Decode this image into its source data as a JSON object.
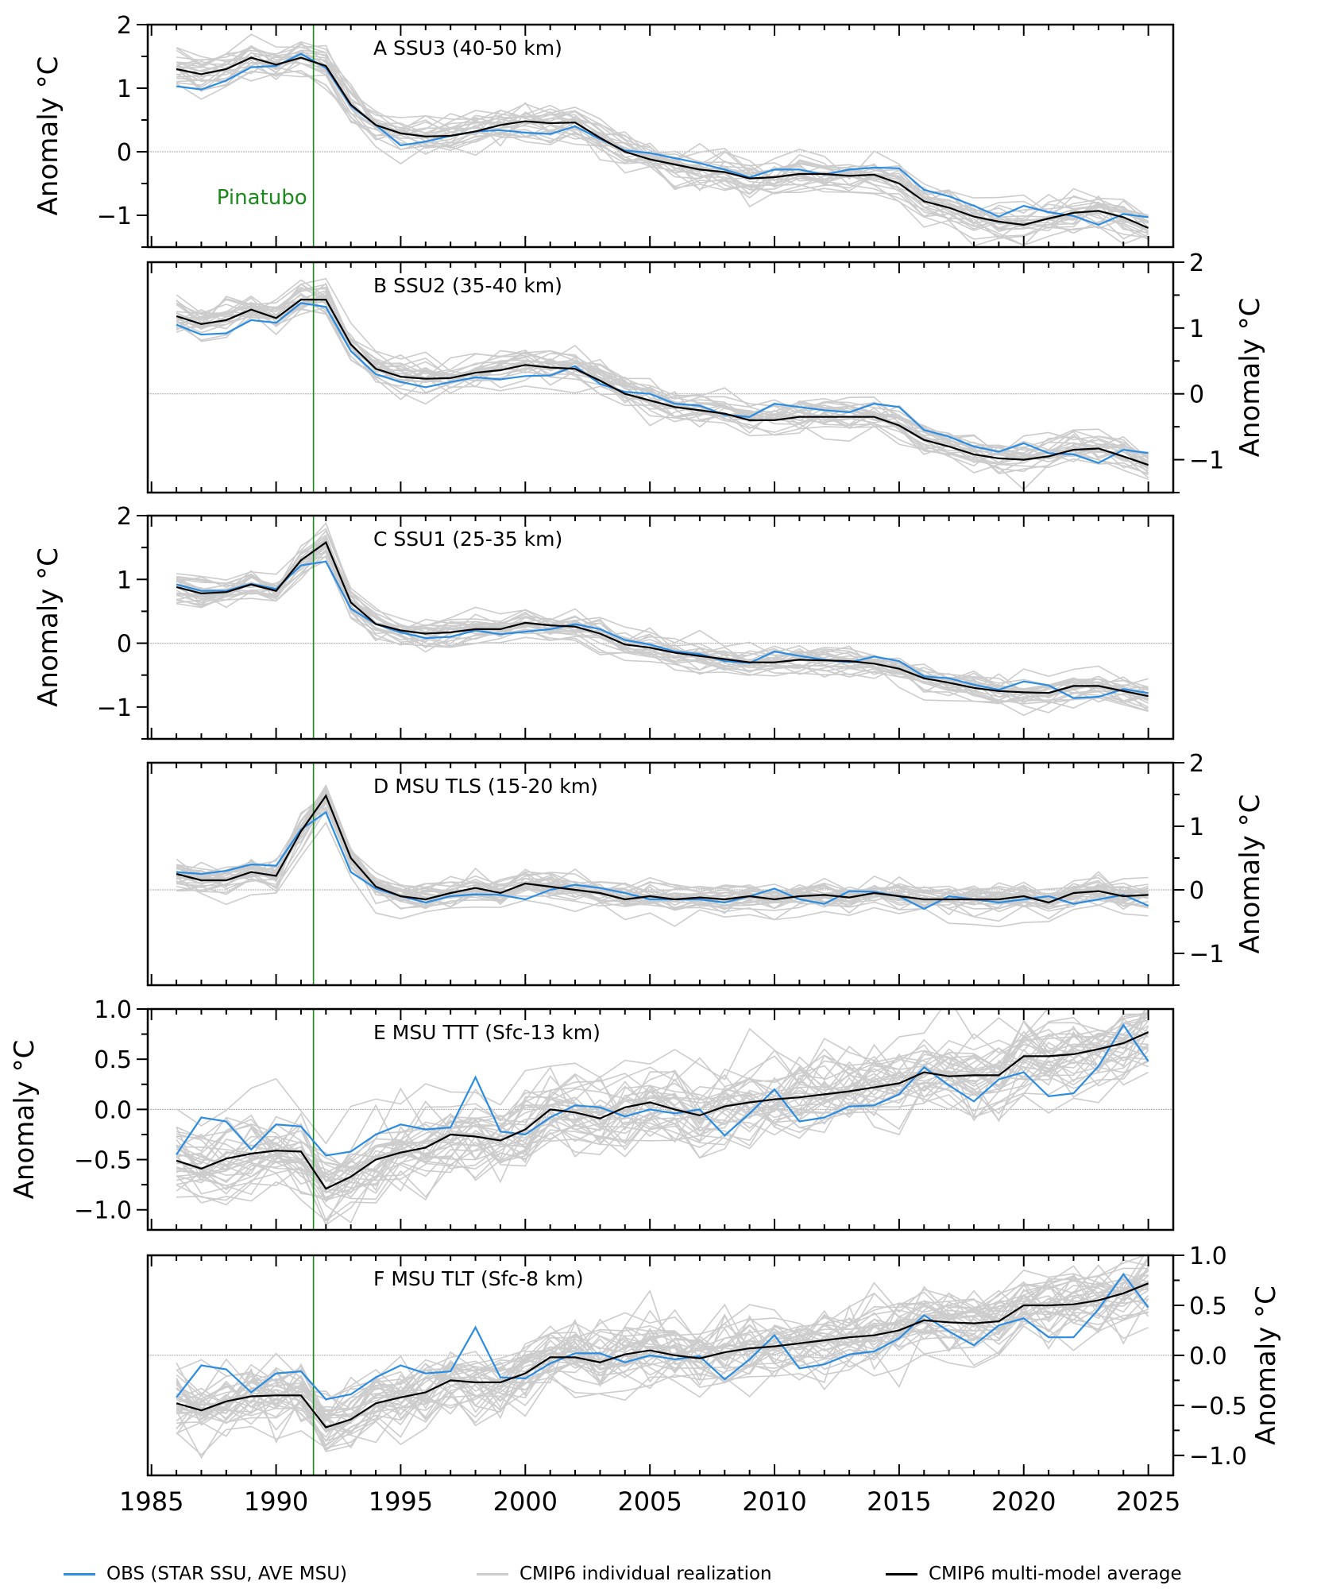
{
  "figure": {
    "legend": [
      {
        "label": "OBS (STAR SSU, AVE MSU)",
        "color": "#2b8ce0"
      },
      {
        "label": "CMIP6 individual realization",
        "color": "#cccccc"
      },
      {
        "label": "CMIP6 multi-model average",
        "color": "#000000"
      }
    ],
    "colors": {
      "obs": "#2b8ce0",
      "realization": "#cccccc",
      "mean": "#000000",
      "pinatubo": "#1a8a1a",
      "zero_line": "#aaaaaa"
    }
  },
  "chart_data": [
    {
      "type": "line",
      "panel": "A",
      "title": "A   SSU3 (40-50 km)",
      "ylabel": "Anomaly °C",
      "ylabel_side": "left",
      "ylim": [
        -1.5,
        2.0
      ],
      "yticks": [
        -1,
        0,
        1,
        2
      ],
      "ytick_labels": [
        "−1",
        "0",
        "1",
        "2"
      ],
      "xlim": [
        1984.85,
        2026.0
      ],
      "xticks": [
        1985,
        1990,
        1995,
        2000,
        2005,
        2010,
        2015,
        2020,
        2025
      ],
      "xtick_labels": [],
      "grid": false,
      "annotation": {
        "text": "Pinatubo",
        "x": 1991.5
      },
      "x": [
        1986,
        1987,
        1988,
        1989,
        1990,
        1991,
        1992,
        1993,
        1994,
        1995,
        1996,
        1997,
        1998,
        1999,
        2000,
        2001,
        2002,
        2003,
        2004,
        2005,
        2006,
        2007,
        2008,
        2009,
        2010,
        2011,
        2012,
        2013,
        2014,
        2015,
        2016,
        2017,
        2018,
        2019,
        2020,
        2021,
        2022,
        2023,
        2024,
        2025
      ],
      "series": [
        {
          "name": "OBS (STAR SSU, AVE MSU)",
          "values": [
            1.03,
            0.98,
            1.12,
            1.33,
            1.35,
            1.54,
            1.32,
            0.72,
            0.42,
            0.1,
            0.16,
            0.25,
            0.32,
            0.34,
            0.3,
            0.28,
            0.4,
            0.2,
            0.02,
            -0.02,
            -0.1,
            -0.18,
            -0.28,
            -0.4,
            -0.28,
            -0.28,
            -0.36,
            -0.28,
            -0.25,
            -0.26,
            -0.6,
            -0.7,
            -0.85,
            -1.02,
            -0.85,
            -0.95,
            -1.01,
            -1.15,
            -0.98,
            -1.03
          ]
        },
        {
          "name": "CMIP6 multi-model average",
          "values": [
            1.3,
            1.22,
            1.3,
            1.48,
            1.37,
            1.48,
            1.35,
            0.74,
            0.42,
            0.29,
            0.24,
            0.25,
            0.32,
            0.42,
            0.48,
            0.45,
            0.46,
            0.22,
            0.0,
            -0.12,
            -0.2,
            -0.28,
            -0.32,
            -0.42,
            -0.4,
            -0.35,
            -0.35,
            -0.38,
            -0.36,
            -0.5,
            -0.78,
            -0.88,
            -1.02,
            -1.1,
            -1.15,
            -1.05,
            -0.96,
            -0.93,
            -1.03,
            -1.2
          ]
        }
      ],
      "realizations": {
        "name": "CMIP6 individual realization",
        "count": 24,
        "spread": 0.18
      }
    },
    {
      "type": "line",
      "panel": "B",
      "title": "B   SSU2 (35-40 km)",
      "ylabel": "Anomaly °C",
      "ylabel_side": "right",
      "ylim": [
        -1.5,
        2.0
      ],
      "yticks": [
        -1,
        0,
        1,
        2
      ],
      "ytick_labels": [
        "−1",
        "0",
        "1",
        "2"
      ],
      "xlim": [
        1984.85,
        2026.0
      ],
      "xticks": [
        1985,
        1990,
        1995,
        2000,
        2005,
        2010,
        2015,
        2020,
        2025
      ],
      "xtick_labels": [],
      "grid": false,
      "x": [
        1986,
        1987,
        1988,
        1989,
        1990,
        1991,
        1992,
        1993,
        1994,
        1995,
        1996,
        1997,
        1998,
        1999,
        2000,
        2001,
        2002,
        2003,
        2004,
        2005,
        2006,
        2007,
        2008,
        2009,
        2010,
        2011,
        2012,
        2013,
        2014,
        2015,
        2016,
        2017,
        2018,
        2019,
        2020,
        2021,
        2022,
        2023,
        2024,
        2025
      ],
      "series": [
        {
          "name": "OBS (STAR SSU, AVE MSU)",
          "values": [
            1.05,
            0.9,
            0.92,
            1.12,
            1.08,
            1.38,
            1.32,
            0.65,
            0.3,
            0.18,
            0.1,
            0.18,
            0.25,
            0.22,
            0.27,
            0.28,
            0.42,
            0.15,
            0.03,
            0.0,
            -0.15,
            -0.18,
            -0.32,
            -0.35,
            -0.15,
            -0.2,
            -0.25,
            -0.28,
            -0.15,
            -0.2,
            -0.55,
            -0.65,
            -0.8,
            -0.88,
            -0.75,
            -0.9,
            -0.92,
            -1.05,
            -0.85,
            -0.9
          ]
        },
        {
          "name": "CMIP6 multi-model average",
          "values": [
            1.18,
            1.06,
            1.12,
            1.28,
            1.15,
            1.43,
            1.43,
            0.75,
            0.38,
            0.26,
            0.23,
            0.24,
            0.32,
            0.36,
            0.44,
            0.4,
            0.38,
            0.2,
            0.0,
            -0.1,
            -0.2,
            -0.25,
            -0.3,
            -0.4,
            -0.4,
            -0.35,
            -0.35,
            -0.35,
            -0.35,
            -0.48,
            -0.7,
            -0.8,
            -0.92,
            -0.98,
            -1.0,
            -0.95,
            -0.85,
            -0.83,
            -0.95,
            -1.08
          ]
        }
      ],
      "realizations": {
        "name": "CMIP6 individual realization",
        "count": 24,
        "spread": 0.16
      }
    },
    {
      "type": "line",
      "panel": "C",
      "title": "C   SSU1 (25-35 km)",
      "ylabel": "Anomaly °C",
      "ylabel_side": "left",
      "ylim": [
        -1.5,
        2.0
      ],
      "yticks": [
        -1,
        0,
        1,
        2
      ],
      "ytick_labels": [
        "−1",
        "0",
        "1",
        "2"
      ],
      "xlim": [
        1984.85,
        2026.0
      ],
      "xticks": [
        1985,
        1990,
        1995,
        2000,
        2005,
        2010,
        2015,
        2020,
        2025
      ],
      "xtick_labels": [],
      "grid": false,
      "x": [
        1986,
        1987,
        1988,
        1989,
        1990,
        1991,
        1992,
        1993,
        1994,
        1995,
        1996,
        1997,
        1998,
        1999,
        2000,
        2001,
        2002,
        2003,
        2004,
        2005,
        2006,
        2007,
        2008,
        2009,
        2010,
        2011,
        2012,
        2013,
        2014,
        2015,
        2016,
        2017,
        2018,
        2019,
        2020,
        2021,
        2022,
        2023,
        2024,
        2025
      ],
      "series": [
        {
          "name": "OBS (STAR SSU, AVE MSU)",
          "values": [
            0.92,
            0.82,
            0.82,
            0.93,
            0.85,
            1.22,
            1.28,
            0.54,
            0.3,
            0.17,
            0.08,
            0.1,
            0.2,
            0.14,
            0.18,
            0.22,
            0.3,
            0.22,
            0.05,
            -0.02,
            -0.13,
            -0.17,
            -0.28,
            -0.31,
            -0.13,
            -0.2,
            -0.26,
            -0.3,
            -0.21,
            -0.28,
            -0.52,
            -0.55,
            -0.65,
            -0.73,
            -0.6,
            -0.66,
            -0.86,
            -0.84,
            -0.72,
            -0.78
          ]
        },
        {
          "name": "CMIP6 multi-model average",
          "values": [
            0.88,
            0.78,
            0.8,
            0.92,
            0.82,
            1.3,
            1.58,
            0.64,
            0.3,
            0.2,
            0.15,
            0.17,
            0.22,
            0.22,
            0.32,
            0.28,
            0.26,
            0.15,
            -0.02,
            -0.07,
            -0.15,
            -0.2,
            -0.25,
            -0.3,
            -0.3,
            -0.26,
            -0.27,
            -0.28,
            -0.32,
            -0.4,
            -0.55,
            -0.62,
            -0.7,
            -0.75,
            -0.77,
            -0.78,
            -0.67,
            -0.67,
            -0.75,
            -0.83
          ]
        }
      ],
      "realizations": {
        "name": "CMIP6 individual realization",
        "count": 24,
        "spread": 0.13
      }
    },
    {
      "type": "line",
      "panel": "D",
      "title": "D   MSU TLS (15-20 km)",
      "ylabel": "Anomaly °C",
      "ylabel_side": "right",
      "ylim": [
        -1.5,
        2.0
      ],
      "yticks": [
        -1,
        0,
        1,
        2
      ],
      "ytick_labels": [
        "−1",
        "0",
        "1",
        "2"
      ],
      "xlim": [
        1984.85,
        2026.0
      ],
      "xticks": [
        1985,
        1990,
        1995,
        2000,
        2005,
        2010,
        2015,
        2020,
        2025
      ],
      "xtick_labels": [],
      "grid": false,
      "x": [
        1986,
        1987,
        1988,
        1989,
        1990,
        1991,
        1992,
        1993,
        1994,
        1995,
        1996,
        1997,
        1998,
        1999,
        2000,
        2001,
        2002,
        2003,
        2004,
        2005,
        2006,
        2007,
        2008,
        2009,
        2010,
        2011,
        2012,
        2013,
        2014,
        2015,
        2016,
        2017,
        2018,
        2019,
        2020,
        2021,
        2022,
        2023,
        2024,
        2025
      ],
      "series": [
        {
          "name": "OBS (STAR SSU, AVE MSU)",
          "values": [
            0.28,
            0.25,
            0.3,
            0.4,
            0.38,
            0.95,
            1.22,
            0.28,
            0.02,
            -0.1,
            -0.2,
            -0.1,
            -0.07,
            -0.08,
            -0.15,
            0.0,
            0.08,
            0.03,
            -0.05,
            -0.15,
            -0.15,
            -0.15,
            -0.2,
            -0.1,
            0.02,
            -0.15,
            -0.22,
            -0.02,
            -0.03,
            -0.1,
            -0.3,
            -0.1,
            -0.15,
            -0.2,
            -0.15,
            -0.1,
            -0.22,
            -0.15,
            -0.08,
            -0.25
          ]
        },
        {
          "name": "CMIP6 multi-model average",
          "values": [
            0.25,
            0.15,
            0.15,
            0.28,
            0.22,
            0.92,
            1.48,
            0.5,
            0.05,
            -0.1,
            -0.15,
            -0.05,
            0.03,
            -0.05,
            0.1,
            0.05,
            0.0,
            -0.05,
            -0.15,
            -0.1,
            -0.15,
            -0.12,
            -0.15,
            -0.1,
            -0.15,
            -0.1,
            -0.08,
            -0.12,
            -0.05,
            -0.1,
            -0.15,
            -0.15,
            -0.15,
            -0.15,
            -0.1,
            -0.2,
            -0.05,
            -0.02,
            -0.1,
            -0.08
          ]
        }
      ],
      "realizations": {
        "name": "CMIP6 individual realization",
        "count": 28,
        "spread": 0.14
      }
    },
    {
      "type": "line",
      "panel": "E",
      "title": "E   MSU TTT (Sfc-13 km)",
      "ylabel": "Anomaly °C",
      "ylabel_side": "left",
      "ylim": [
        -1.2,
        1.0
      ],
      "yticks": [
        -1.0,
        -0.5,
        0.0,
        0.5,
        1.0
      ],
      "ytick_labels": [
        "−1.0",
        "−0.5",
        "0.0",
        "0.5",
        "1.0"
      ],
      "xlim": [
        1984.85,
        2026.0
      ],
      "xticks": [
        1985,
        1990,
        1995,
        2000,
        2005,
        2010,
        2015,
        2020,
        2025
      ],
      "xtick_labels": [],
      "grid": false,
      "x": [
        1986,
        1987,
        1988,
        1989,
        1990,
        1991,
        1992,
        1993,
        1994,
        1995,
        1996,
        1997,
        1998,
        1999,
        2000,
        2001,
        2002,
        2003,
        2004,
        2005,
        2006,
        2007,
        2008,
        2009,
        2010,
        2011,
        2012,
        2013,
        2014,
        2015,
        2016,
        2017,
        2018,
        2019,
        2020,
        2021,
        2022,
        2023,
        2024,
        2025
      ],
      "series": [
        {
          "name": "OBS (STAR SSU, AVE MSU)",
          "values": [
            -0.45,
            -0.08,
            -0.12,
            -0.4,
            -0.15,
            -0.17,
            -0.46,
            -0.42,
            -0.25,
            -0.15,
            -0.2,
            -0.18,
            0.32,
            -0.22,
            -0.25,
            -0.08,
            0.04,
            0.02,
            -0.07,
            0.0,
            -0.04,
            0.0,
            -0.26,
            -0.04,
            0.2,
            -0.12,
            -0.08,
            0.03,
            0.04,
            0.15,
            0.42,
            0.24,
            0.08,
            0.3,
            0.37,
            0.13,
            0.16,
            0.43,
            0.84,
            0.48
          ]
        },
        {
          "name": "CMIP6 multi-model average",
          "values": [
            -0.51,
            -0.59,
            -0.49,
            -0.44,
            -0.41,
            -0.42,
            -0.79,
            -0.67,
            -0.5,
            -0.43,
            -0.38,
            -0.25,
            -0.27,
            -0.31,
            -0.2,
            0.0,
            -0.03,
            -0.09,
            0.02,
            0.07,
            0.0,
            -0.06,
            0.03,
            0.07,
            0.1,
            0.12,
            0.15,
            0.18,
            0.22,
            0.26,
            0.37,
            0.33,
            0.34,
            0.34,
            0.53,
            0.53,
            0.55,
            0.6,
            0.66,
            0.77
          ]
        }
      ],
      "realizations": {
        "name": "CMIP6 individual realization",
        "count": 36,
        "spread": 0.22
      }
    },
    {
      "type": "line",
      "panel": "F",
      "title": "F   MSU TLT (Sfc-8 km)",
      "ylabel": "Anomaly °C",
      "ylabel_side": "right",
      "ylim": [
        -1.2,
        1.0
      ],
      "yticks": [
        -1.0,
        -0.5,
        0.0,
        0.5,
        1.0
      ],
      "ytick_labels": [
        "−1.0",
        "−0.5",
        "0.0",
        "0.5",
        "1.0"
      ],
      "xlim": [
        1984.85,
        2026.0
      ],
      "xticks": [
        1985,
        1990,
        1995,
        2000,
        2005,
        2010,
        2015,
        2020,
        2025
      ],
      "xtick_labels": [
        "1985",
        "1990",
        "1995",
        "2000",
        "2005",
        "2010",
        "2015",
        "2020",
        "2025"
      ],
      "grid": false,
      "x": [
        1986,
        1987,
        1988,
        1989,
        1990,
        1991,
        1992,
        1993,
        1994,
        1995,
        1996,
        1997,
        1998,
        1999,
        2000,
        2001,
        2002,
        2003,
        2004,
        2005,
        2006,
        2007,
        2008,
        2009,
        2010,
        2011,
        2012,
        2013,
        2014,
        2015,
        2016,
        2017,
        2018,
        2019,
        2020,
        2021,
        2022,
        2023,
        2024,
        2025
      ],
      "series": [
        {
          "name": "OBS (STAR SSU, AVE MSU)",
          "values": [
            -0.42,
            -0.1,
            -0.14,
            -0.37,
            -0.18,
            -0.16,
            -0.44,
            -0.39,
            -0.22,
            -0.1,
            -0.18,
            -0.16,
            0.28,
            -0.22,
            -0.23,
            -0.08,
            0.02,
            0.02,
            -0.07,
            0.0,
            -0.04,
            -0.01,
            -0.24,
            -0.04,
            0.2,
            -0.13,
            -0.09,
            0.01,
            0.04,
            0.17,
            0.4,
            0.24,
            0.1,
            0.3,
            0.37,
            0.18,
            0.18,
            0.46,
            0.81,
            0.48
          ]
        },
        {
          "name": "CMIP6 multi-model average",
          "values": [
            -0.48,
            -0.55,
            -0.46,
            -0.41,
            -0.4,
            -0.4,
            -0.72,
            -0.64,
            -0.48,
            -0.42,
            -0.37,
            -0.25,
            -0.27,
            -0.27,
            -0.18,
            -0.02,
            -0.02,
            -0.07,
            0.01,
            0.05,
            0.0,
            -0.03,
            0.03,
            0.07,
            0.09,
            0.12,
            0.15,
            0.18,
            0.2,
            0.25,
            0.35,
            0.33,
            0.32,
            0.34,
            0.5,
            0.5,
            0.51,
            0.55,
            0.62,
            0.72
          ]
        }
      ],
      "realizations": {
        "name": "CMIP6 individual realization",
        "count": 36,
        "spread": 0.22
      }
    }
  ]
}
